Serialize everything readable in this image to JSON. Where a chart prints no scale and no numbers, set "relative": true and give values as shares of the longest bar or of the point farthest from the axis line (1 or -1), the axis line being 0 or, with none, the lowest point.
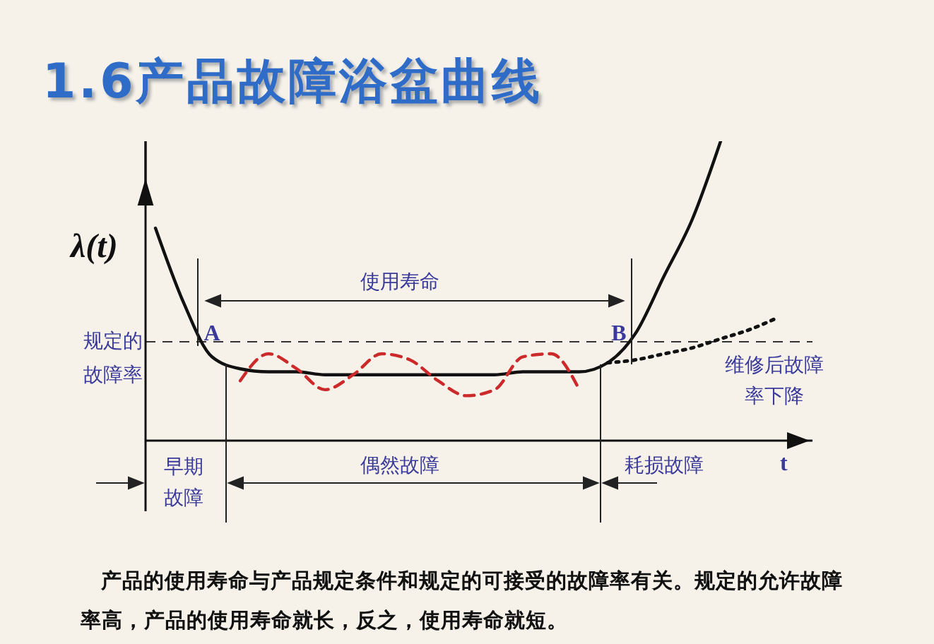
{
  "chart_data": {
    "type": "line",
    "title": "1.6产品故障浴盆曲线",
    "xlabel": "t",
    "ylabel": "λ(t)",
    "relative": true,
    "tick_labels": false,
    "categories": [
      null,
      null,
      null,
      null,
      null,
      null,
      null,
      null,
      null,
      null,
      null,
      null,
      null,
      null,
      null,
      null,
      null,
      null,
      null,
      null,
      null,
      null,
      null,
      null
    ],
    "series": [
      {
        "color": "#111111",
        "line_style": "solid",
        "values": [
          0.71,
          0.46,
          0.28,
          0.24,
          0.23,
          0.23,
          0.22,
          0.22,
          0.22,
          0.22,
          0.22,
          0.22,
          0.22,
          0.23,
          0.23,
          0.23,
          0.26,
          0.36,
          0.55,
          0.74,
          1,
          null,
          null,
          null
        ]
      },
      {
        "color": "#cc2a2a",
        "line_style": "dashed",
        "values": [
          null,
          null,
          null,
          0.2,
          0.29,
          0.24,
          0.17,
          0.22,
          0.29,
          0.27,
          0.2,
          0.15,
          0.17,
          0.28,
          0.29,
          0.17,
          null,
          null,
          null,
          null,
          null,
          null,
          null,
          null
        ]
      },
      {
        "color": "#111111",
        "line_style": "dotted",
        "values": [
          null,
          null,
          null,
          null,
          null,
          null,
          null,
          null,
          null,
          null,
          null,
          null,
          null,
          null,
          null,
          null,
          0.26,
          0.27,
          0.29,
          0.31,
          0.34,
          0.37,
          0.41,
          null
        ]
      }
    ],
    "ref_lines": [
      {
        "axis": "y",
        "value": 0.33,
        "label": "规定的故障率",
        "line_style": "dashed",
        "color": "#333333"
      }
    ],
    "annotations": [
      "使用寿命",
      "A",
      "B",
      "早期故障",
      "偶然故障",
      "耗损故障",
      "维修后故障率下降",
      "产品的使用寿命与产品规定条件和规定的可接受的故障率有关。规定的允许故障率高，产品的使用寿命就长，反之，使用寿命就短。"
    ]
  }
}
